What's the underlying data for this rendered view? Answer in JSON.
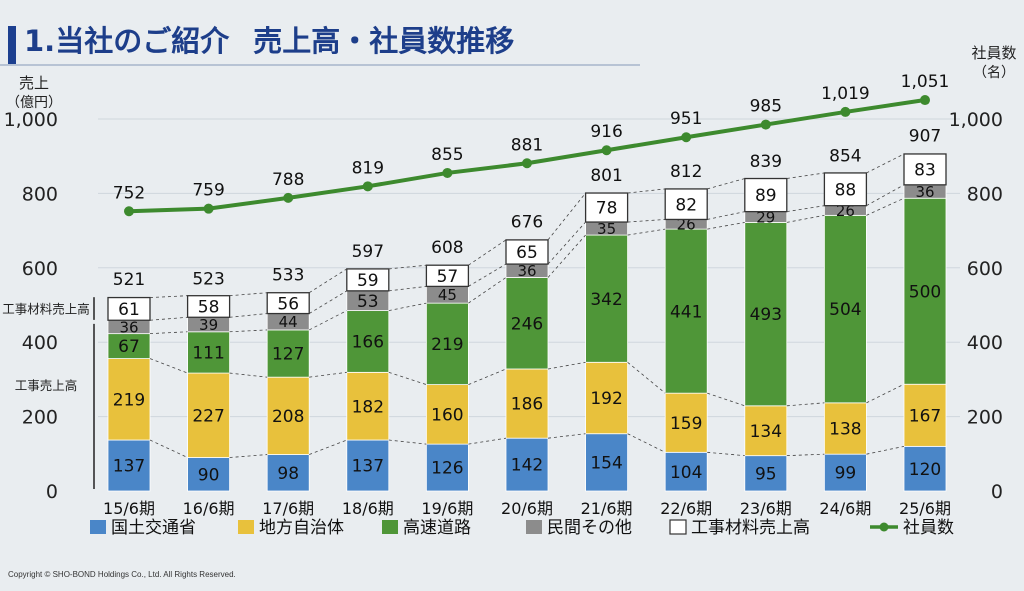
{
  "page": {
    "title": "1.当社のご紹介",
    "subtitle": "売上高・社員数推移",
    "copyright": "Copyright © SHO-BOND Holdings Co., Ltd. All Rights Reserved."
  },
  "chart_data": {
    "type": "bar",
    "stacked": true,
    "categories": [
      "15/6期",
      "16/6期",
      "17/6期",
      "18/6期",
      "19/6期",
      "20/6期",
      "21/6期",
      "22/6期",
      "23/6期",
      "24/6期",
      "25/6期"
    ],
    "series": [
      {
        "name": "国土交通省",
        "color": "#4a86c8",
        "values": [
          137,
          90,
          98,
          137,
          126,
          142,
          154,
          104,
          95,
          99,
          120
        ]
      },
      {
        "name": "地方自治体",
        "color": "#e8c13c",
        "values": [
          219,
          227,
          208,
          182,
          160,
          186,
          192,
          159,
          134,
          138,
          167
        ]
      },
      {
        "name": "高速道路",
        "color": "#4f9638",
        "values": [
          67,
          111,
          127,
          166,
          219,
          246,
          342,
          441,
          493,
          504,
          500
        ]
      },
      {
        "name": "民間その他",
        "color": "#8c8c8c",
        "values": [
          36,
          39,
          44,
          53,
          45,
          36,
          35,
          26,
          29,
          26,
          36
        ]
      },
      {
        "name": "工事材料売上高",
        "color": "#ffffff",
        "values": [
          61,
          58,
          56,
          59,
          57,
          65,
          78,
          82,
          89,
          88,
          83
        ]
      }
    ],
    "totals": [
      521,
      523,
      533,
      597,
      608,
      676,
      801,
      812,
      839,
      854,
      907
    ],
    "employees": {
      "name": "社員数",
      "color": "#3d8a2e",
      "values": [
        752,
        759,
        788,
        819,
        855,
        881,
        916,
        951,
        985,
        1019,
        1051
      ]
    },
    "left_axis": {
      "label_line1": "売上",
      "label_line2": "（億円）",
      "ylim": [
        0,
        1000
      ],
      "ticks": [
        0,
        200,
        400,
        600,
        800,
        1000
      ],
      "tick_labels": [
        "0",
        "200",
        "400",
        "600",
        "800",
        "1,000"
      ]
    },
    "right_axis": {
      "label_line1": "社員数",
      "label_line2": "（名）",
      "ylim": [
        0,
        1000
      ],
      "ticks": [
        0,
        200,
        400,
        600,
        800,
        1000
      ],
      "tick_labels": [
        "0",
        "200",
        "400",
        "600",
        "800",
        "1,000"
      ]
    },
    "side_labels": {
      "materials": "工事材料売上高",
      "construction": "工事売上高"
    },
    "legend": {
      "position": "bottom",
      "items": [
        "国土交通省",
        "地方自治体",
        "高速道路",
        "民間その他",
        "工事材料売上高",
        "社員数"
      ]
    }
  }
}
